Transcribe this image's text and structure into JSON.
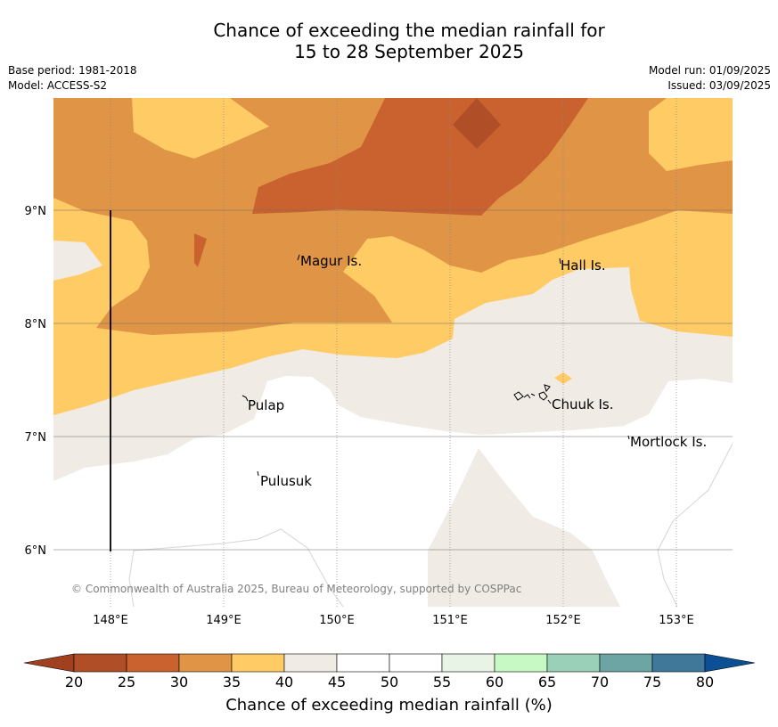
{
  "title": {
    "line1": "Chance of exceeding the median rainfall for",
    "line2": "15 to 28 September 2025"
  },
  "meta": {
    "base_period": "Base period: 1981-2018",
    "model": "Model: ACCESS-S2",
    "model_run": "Model run: 01/09/2025",
    "issued": "Issued: 03/09/2025"
  },
  "map": {
    "lon_ticks": [
      "148°E",
      "149°E",
      "150°E",
      "151°E",
      "152°E",
      "153°E"
    ],
    "lat_ticks": [
      "9°N",
      "8°N",
      "7°N",
      "6°N"
    ],
    "places": {
      "magur": "Magur Is.",
      "hall": "Hall Is.",
      "pulap": "Pulap",
      "chuuk": "Chuuk Is.",
      "mortlock": "Mortlock Is.",
      "pulusuk": "Pulusuk"
    },
    "copyright": "© Commonwealth of Australia 2025, Bureau of Meteorology, supported by COSPPac"
  },
  "colorbar": {
    "label": "Chance of exceeding median rainfall (%)",
    "ticks": [
      "20",
      "25",
      "30",
      "35",
      "40",
      "45",
      "50",
      "55",
      "60",
      "65",
      "70",
      "75",
      "80"
    ],
    "colors": [
      "#b04e27",
      "#c9622f",
      "#e09445",
      "#fecb65",
      "#f0ebe5",
      "#ffffff",
      "#ffffff",
      "#e8f5e6",
      "#c7f9c5",
      "#9ad0b7",
      "#6da5a5",
      "#3f7899"
    ],
    "under_color": "#a0401e",
    "over_color": "#0d4f94"
  }
}
